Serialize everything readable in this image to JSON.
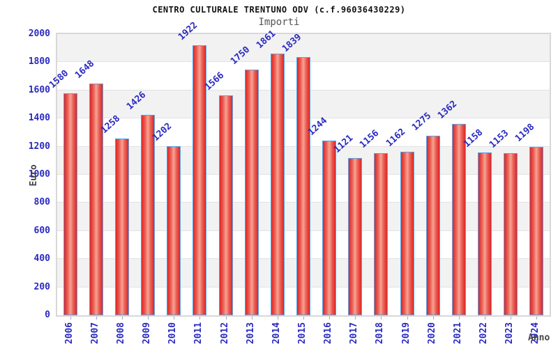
{
  "header": {
    "title": "CENTRO CULTURALE TRENTUNO ODV (c.f.96036430229)",
    "subtitle": "Importi"
  },
  "chart_data": {
    "type": "bar",
    "title": "CENTRO CULTURALE TRENTUNO ODV (c.f.96036430229)",
    "subtitle": "Importi",
    "xlabel": "Anno",
    "ylabel": "Euro",
    "categories": [
      "2006",
      "2007",
      "2008",
      "2009",
      "2010",
      "2011",
      "2012",
      "2013",
      "2014",
      "2015",
      "2016",
      "2017",
      "2018",
      "2019",
      "2020",
      "2021",
      "2022",
      "2023",
      "2024"
    ],
    "values": [
      1580,
      1648,
      1258,
      1426,
      1202,
      1922,
      1566,
      1750,
      1861,
      1839,
      1244,
      1121,
      1156,
      1162,
      1275,
      1362,
      1158,
      1153,
      1198
    ],
    "ylim": [
      0,
      2000
    ],
    "ytick_step": 200,
    "grid": "horizontal-bands-alternating",
    "legend": "none",
    "colors": {
      "bar_edge": "#dd2626",
      "bar_mid": "#ec5f55",
      "bar_center": "#f5a494",
      "bar_border": "#58a6e8",
      "value_label": "#2a2ac2",
      "tick_label": "#2a2ac2",
      "title": "#111111",
      "subtitle": "#555555",
      "axis_title": "#444444",
      "band_gray": "#f2f2f2",
      "band_white": "#ffffff",
      "gridline": "#e2e2e2",
      "plot_border": "#d8d8d8"
    }
  }
}
